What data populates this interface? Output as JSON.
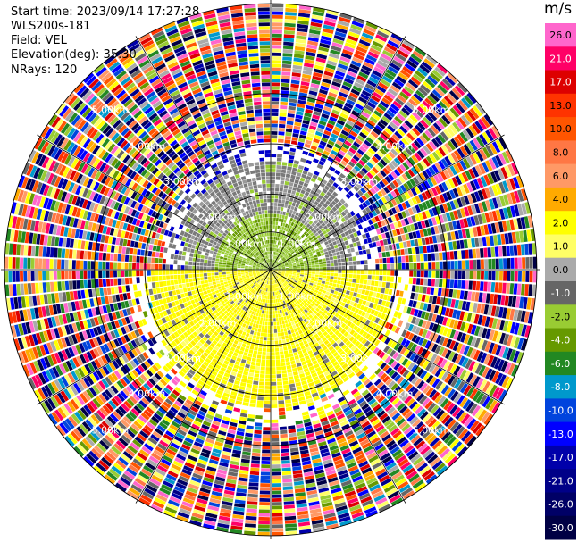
{
  "info": {
    "start_time": "Start time: 2023/09/14 17:27:28",
    "instrument": "WLS200s-181",
    "field": "Field: VEL",
    "elevation": "Elevation(deg): 35.30",
    "nrays": "NRays: 120"
  },
  "colorbar": {
    "unit": "m/s",
    "ticks": [
      "26.0",
      "21.0",
      "17.0",
      "13.0",
      "10.0",
      "8.0",
      "6.0",
      "4.0",
      "2.0",
      "1.0",
      "0.0",
      "-1.0",
      "-2.0",
      "-4.0",
      "-6.0",
      "-8.0",
      "-10.0",
      "-13.0",
      "-17.0",
      "-21.0",
      "-26.0",
      "-30.0"
    ],
    "colors": [
      "#ff66cc",
      "#ff0066",
      "#dd0000",
      "#ff3300",
      "#ff5500",
      "#ff7744",
      "#ff9966",
      "#ffaa00",
      "#ffff00",
      "#ffff66",
      "#aaaaaa",
      "#666666",
      "#99cc33",
      "#669900",
      "#228822",
      "#0099cc",
      "#0044dd",
      "#0000ff",
      "#0000aa",
      "#000088",
      "#000066",
      "#000044"
    ]
  },
  "chart_data": {
    "type": "heatmap",
    "subtype": "polar PPI (plan position indicator)",
    "field": "VEL",
    "units": "m/s",
    "rays": 120,
    "range_rings_km": [
      1,
      2,
      3,
      4,
      5
    ],
    "range_ring_labels": [
      "1.00km",
      "2.00km",
      "3.00km",
      "4.00km",
      "5.00km"
    ],
    "description_of_pattern": {
      "near_field_upper_half": "green (-2 to -4 m/s) and gray (0 to -1 m/s)",
      "near_field_lower_half": "yellow (2 to 4 m/s)",
      "far_field": "noisy, all colors"
    }
  }
}
